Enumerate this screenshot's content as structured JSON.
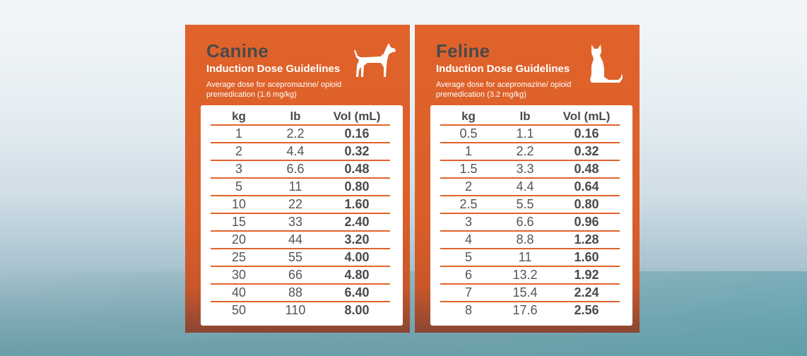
{
  "canine": {
    "title": "Canine",
    "subtitle": "Induction Dose Guidelines",
    "note": "Average dose for acepromazine/ opioid premedication (1.6 mg/kg)",
    "headers": [
      "kg",
      "lb",
      "Vol (mL)"
    ],
    "rows": [
      [
        "1",
        "2.2",
        "0.16"
      ],
      [
        "2",
        "4.4",
        "0.32"
      ],
      [
        "3",
        "6.6",
        "0.48"
      ],
      [
        "5",
        "11",
        "0.80"
      ],
      [
        "10",
        "22",
        "1.60"
      ],
      [
        "15",
        "33",
        "2.40"
      ],
      [
        "20",
        "44",
        "3.20"
      ],
      [
        "25",
        "55",
        "4.00"
      ],
      [
        "30",
        "66",
        "4.80"
      ],
      [
        "40",
        "88",
        "6.40"
      ],
      [
        "50",
        "110",
        "8.00"
      ]
    ]
  },
  "feline": {
    "title": "Feline",
    "subtitle": "Induction Dose Guidelines",
    "note": "Average dose for acepromazine/ opioid premedication (3.2 mg/kg)",
    "headers": [
      "kg",
      "lb",
      "Vol (mL)"
    ],
    "rows": [
      [
        "0.5",
        "1.1",
        "0.16"
      ],
      [
        "1",
        "2.2",
        "0.32"
      ],
      [
        "1.5",
        "3.3",
        "0.48"
      ],
      [
        "2",
        "4.4",
        "0.64"
      ],
      [
        "2.5",
        "5.5",
        "0.80"
      ],
      [
        "3",
        "6.6",
        "0.96"
      ],
      [
        "4",
        "8.8",
        "1.28"
      ],
      [
        "5",
        "11",
        "1.60"
      ],
      [
        "6",
        "13.2",
        "1.92"
      ],
      [
        "7",
        "15.4",
        "2.24"
      ],
      [
        "8",
        "17.6",
        "2.56"
      ]
    ]
  },
  "icons": {
    "canine": "dog-icon",
    "feline": "cat-icon"
  },
  "colors": {
    "accent": "#e0632b",
    "heading_text": "#4a4a4a",
    "table_bg": "#ffffff"
  }
}
